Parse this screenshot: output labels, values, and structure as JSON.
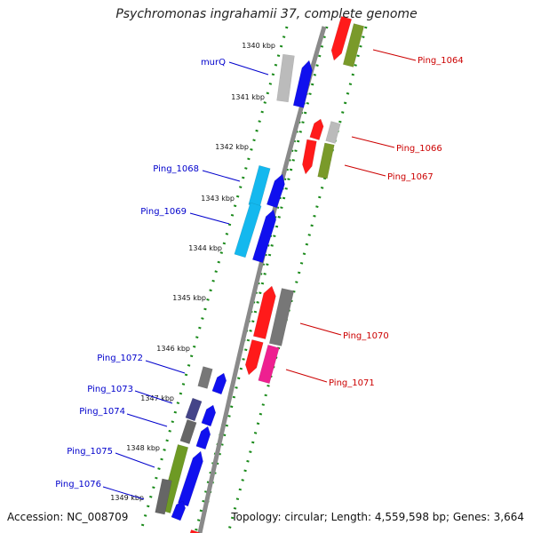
{
  "title": "Psychromonas ingrahamii 37, complete genome",
  "accession": "Accession: NC_008709",
  "topology": "Topology: circular; Length: 4,559,598 bp; Genes: 3,664",
  "colors": {
    "forward_label": "#0000cc",
    "reverse_label": "#cc0000",
    "backbone": "#888888",
    "track_dots": "#1a8a1a"
  },
  "ticks": [
    {
      "label": "1340 kbp"
    },
    {
      "label": "1341 kbp"
    },
    {
      "label": "1342 kbp"
    },
    {
      "label": "1343 kbp"
    },
    {
      "label": "1344 kbp"
    },
    {
      "label": "1345 kbp"
    },
    {
      "label": "1346 kbp"
    },
    {
      "label": "1347 kbp"
    },
    {
      "label": "1348 kbp"
    },
    {
      "label": "1349 kbp"
    }
  ],
  "genes_left": [
    {
      "label": "murQ"
    },
    {
      "label": "Ping_1068"
    },
    {
      "label": "Ping_1069"
    },
    {
      "label": "Ping_1072"
    },
    {
      "label": "Ping_1073"
    },
    {
      "label": "Ping_1074"
    },
    {
      "label": "Ping_1075"
    },
    {
      "label": "Ping_1076"
    }
  ],
  "genes_right": [
    {
      "label": "Ping_1064"
    },
    {
      "label": "Ping_1066"
    },
    {
      "label": "Ping_1067"
    },
    {
      "label": "Ping_1070"
    },
    {
      "label": "Ping_1071"
    }
  ]
}
